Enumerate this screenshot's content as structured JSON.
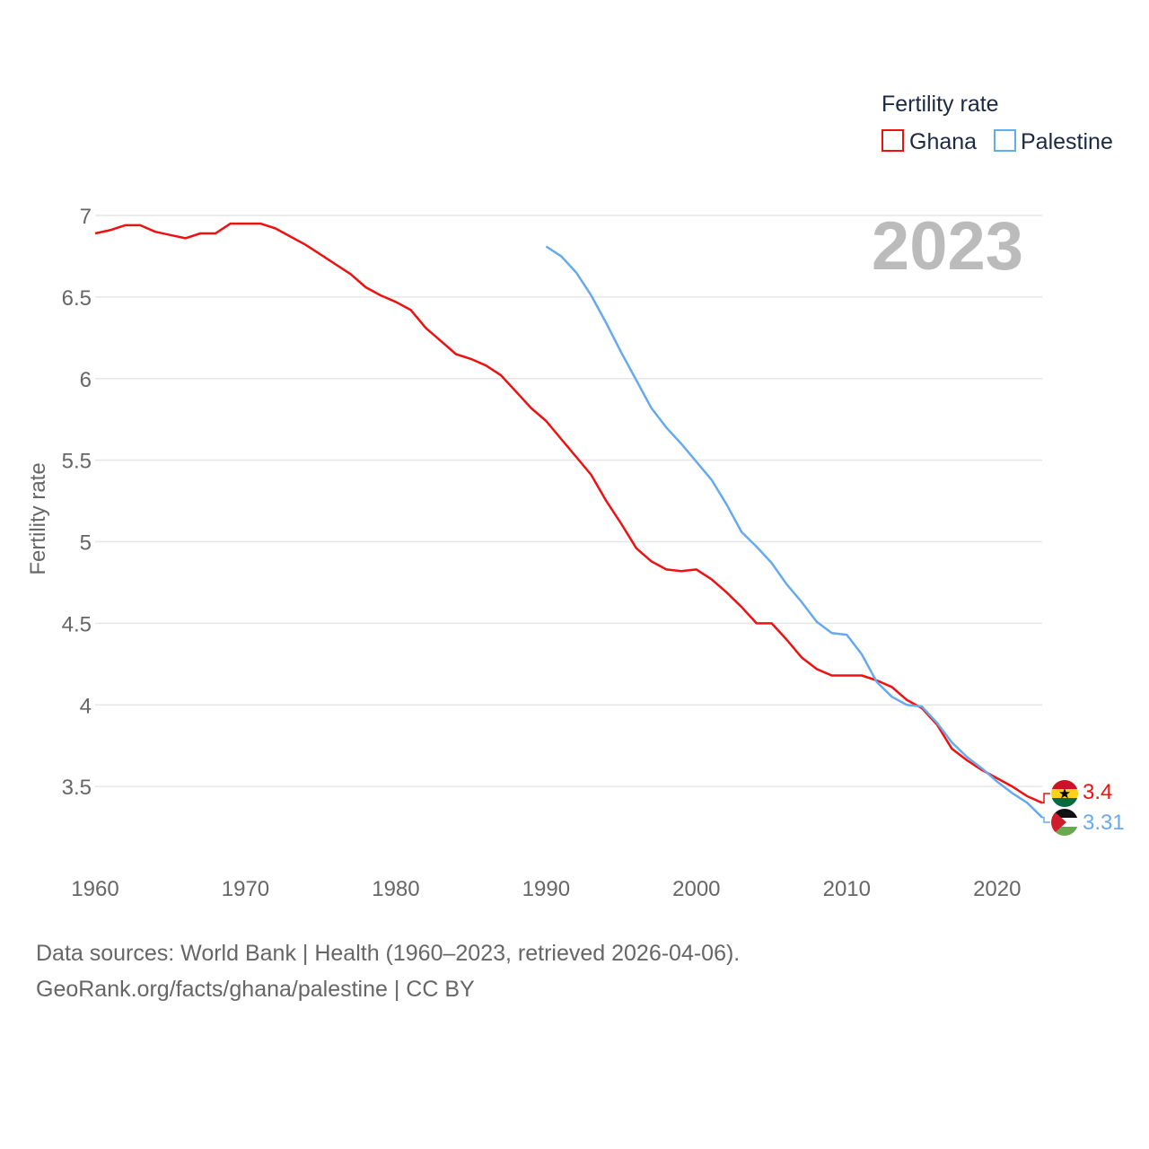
{
  "chart_data": {
    "type": "line",
    "title": "",
    "year_label": "2023",
    "legend_title": "Fertility rate",
    "ylabel": "Fertility rate",
    "xlabel": "",
    "xlim": [
      1960,
      2023
    ],
    "ylim": [
      3.1,
      7
    ],
    "x_ticks": [
      1960,
      1970,
      1980,
      1990,
      2000,
      2010,
      2020
    ],
    "y_ticks": [
      3.5,
      4,
      4.5,
      5,
      5.5,
      6,
      6.5,
      7
    ],
    "grid": true,
    "series": [
      {
        "name": "Ghana",
        "color": "#ee1111",
        "end_label": "3.4",
        "flag": "ghana-flag-icon",
        "x": [
          1960,
          1961,
          1962,
          1963,
          1964,
          1965,
          1966,
          1967,
          1968,
          1969,
          1970,
          1971,
          1972,
          1973,
          1974,
          1975,
          1976,
          1977,
          1978,
          1979,
          1980,
          1981,
          1982,
          1983,
          1984,
          1985,
          1986,
          1987,
          1988,
          1989,
          1990,
          1991,
          1992,
          1993,
          1994,
          1995,
          1996,
          1997,
          1998,
          1999,
          2000,
          2001,
          2002,
          2003,
          2004,
          2005,
          2006,
          2007,
          2008,
          2009,
          2010,
          2011,
          2012,
          2013,
          2014,
          2015,
          2016,
          2017,
          2018,
          2019,
          2020,
          2021,
          2022,
          2023
        ],
        "values": [
          6.89,
          6.91,
          6.94,
          6.94,
          6.9,
          6.88,
          6.86,
          6.89,
          6.89,
          6.95,
          6.95,
          6.95,
          6.92,
          6.87,
          6.82,
          6.76,
          6.7,
          6.64,
          6.56,
          6.51,
          6.47,
          6.42,
          6.31,
          6.23,
          6.15,
          6.12,
          6.08,
          6.02,
          5.92,
          5.82,
          5.74,
          5.63,
          5.52,
          5.41,
          5.25,
          5.11,
          4.96,
          4.88,
          4.83,
          4.82,
          4.83,
          4.77,
          4.69,
          4.6,
          4.5,
          4.5,
          4.4,
          4.29,
          4.22,
          4.18,
          4.18,
          4.18,
          4.15,
          4.11,
          4.03,
          3.98,
          3.88,
          3.73,
          3.66,
          3.6,
          3.55,
          3.5,
          3.44,
          3.4
        ]
      },
      {
        "name": "Palestine",
        "color": "#66aaee",
        "end_label": "3.31",
        "flag": "palestine-flag-icon",
        "x": [
          1990,
          1991,
          1992,
          1993,
          1994,
          1995,
          1996,
          1997,
          1998,
          1999,
          2000,
          2001,
          2002,
          2003,
          2004,
          2005,
          2006,
          2007,
          2008,
          2009,
          2010,
          2011,
          2012,
          2013,
          2014,
          2015,
          2016,
          2017,
          2018,
          2019,
          2020,
          2021,
          2022,
          2023
        ],
        "values": [
          6.81,
          6.75,
          6.65,
          6.51,
          6.34,
          6.16,
          5.99,
          5.82,
          5.7,
          5.6,
          5.49,
          5.38,
          5.23,
          5.06,
          4.97,
          4.87,
          4.74,
          4.63,
          4.51,
          4.44,
          4.43,
          4.31,
          4.14,
          4.05,
          4.0,
          3.99,
          3.89,
          3.77,
          3.68,
          3.61,
          3.53,
          3.46,
          3.4,
          3.31
        ]
      }
    ]
  },
  "footer": {
    "line1": "Data sources: World Bank | Health (1960–2023, retrieved 2026-04-06).",
    "line2": "GeoRank.org/facts/ghana/palestine | CC BY"
  }
}
